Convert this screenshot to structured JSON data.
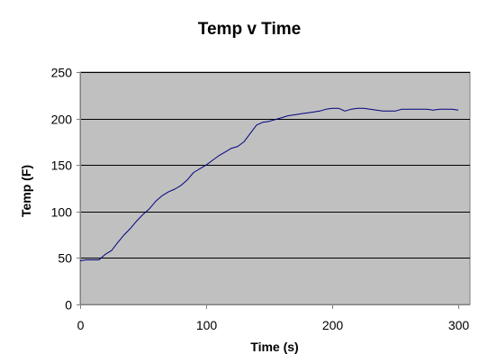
{
  "chart_data": {
    "type": "line",
    "title": "Temp v Time",
    "xlabel": "Time (s)",
    "ylabel": "Temp (F)",
    "xlim": [
      0,
      300
    ],
    "ylim": [
      0,
      250
    ],
    "x_ticks": [
      0,
      100,
      200,
      300
    ],
    "y_ticks": [
      0,
      50,
      100,
      150,
      200,
      250
    ],
    "grid": "horizontal",
    "legend": "none",
    "colors": {
      "plot_background": "#C0C0C0",
      "line": "#000080",
      "grid": "#000000",
      "axis": "#808080"
    },
    "series": [
      {
        "x": [
          0,
          5,
          10,
          15,
          20,
          25,
          30,
          35,
          40,
          45,
          50,
          55,
          60,
          65,
          70,
          75,
          80,
          85,
          90,
          95,
          100,
          105,
          110,
          115,
          120,
          125,
          130,
          135,
          140,
          145,
          150,
          155,
          160,
          165,
          170,
          175,
          180,
          185,
          190,
          195,
          200,
          205,
          210,
          215,
          220,
          225,
          230,
          235,
          240,
          245,
          250,
          255,
          260,
          265,
          270,
          275,
          280,
          285,
          290,
          295,
          300
        ],
        "values": [
          47,
          48,
          48,
          48,
          54,
          58,
          67,
          75,
          82,
          90,
          97,
          103,
          111,
          117,
          121,
          124,
          128,
          134,
          142,
          146,
          150,
          155,
          160,
          164,
          168,
          170,
          175,
          184,
          193,
          196,
          197,
          199,
          201,
          203,
          204,
          205,
          206,
          207,
          208,
          210,
          211,
          211,
          208,
          210,
          211,
          211,
          210,
          209,
          208,
          208,
          208,
          210,
          210,
          210,
          210,
          210,
          209,
          210,
          210,
          210,
          209
        ]
      }
    ]
  }
}
